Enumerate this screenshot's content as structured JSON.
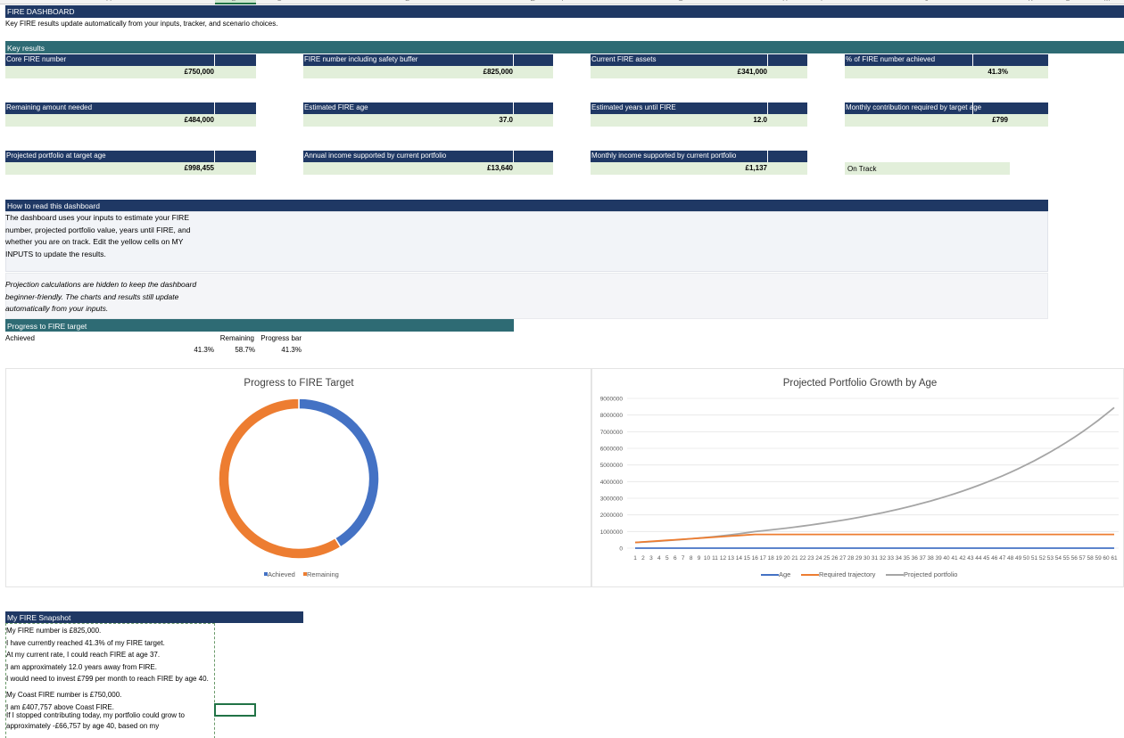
{
  "columns": [
    "A",
    "B",
    "C",
    "D",
    "E",
    "F",
    "G",
    "H",
    "I",
    "J",
    "K",
    "L",
    "M"
  ],
  "header": {
    "title": "FIRE DASHBOARD",
    "subtitle": "Key FIRE results update automatically from your inputs, tracker, and scenario choices."
  },
  "key_results": {
    "title": "Key results",
    "cards": [
      {
        "label": "Core FIRE number",
        "value": "£750,000"
      },
      {
        "label": "FIRE number including safety buffer",
        "value": "£825,000"
      },
      {
        "label": "Current FIRE assets",
        "value": "£341,000"
      },
      {
        "label": "% of FIRE number achieved",
        "value": "41.3%"
      },
      {
        "label": "Remaining amount needed",
        "value": "£484,000"
      },
      {
        "label": "Estimated FIRE age",
        "value": "37.0"
      },
      {
        "label": "Estimated years until FIRE",
        "value": "12.0"
      },
      {
        "label": "Monthly contribution required by target age",
        "value": "£799"
      },
      {
        "label": "Projected portfolio at target age",
        "value": "£998,455"
      },
      {
        "label": "Annual income supported by current portfolio",
        "value": "£13,640"
      },
      {
        "label": "Monthly income supported by current portfolio",
        "value": "£1,137"
      }
    ],
    "status": "On Track"
  },
  "how_to": {
    "title": "How to read this dashboard",
    "body": "The dashboard uses your inputs to estimate your FIRE number, projected portfolio value, years until FIRE, and whether you are on track. Edit the yellow cells on MY INPUTS to update the results.",
    "note": "Projection calculations are hidden to keep the dashboard beginner-friendly. The charts and results still update automatically from your inputs."
  },
  "progress": {
    "title": "Progress to FIRE target",
    "headers": [
      "Achieved",
      "Remaining",
      "Progress bar"
    ],
    "values": [
      "41.3%",
      "58.7%",
      "41.3%"
    ]
  },
  "chart_data": [
    {
      "type": "donut",
      "title": "Progress to FIRE Target",
      "categories": [
        "Achieved",
        "Remaining"
      ],
      "values": [
        41.3,
        58.7
      ],
      "colors": [
        "#4472c4",
        "#ed7d31"
      ],
      "legend": "bottom"
    },
    {
      "type": "line",
      "title": "Projected Portfolio Growth by Age",
      "categories": [
        1,
        2,
        3,
        4,
        5,
        6,
        7,
        8,
        9,
        10,
        11,
        12,
        13,
        14,
        15,
        16,
        17,
        18,
        19,
        20,
        21,
        22,
        23,
        24,
        25,
        26,
        27,
        28,
        29,
        30,
        31,
        32,
        33,
        34,
        35,
        36,
        37,
        38,
        39,
        40,
        41,
        42,
        43,
        44,
        45,
        46,
        47,
        48,
        49,
        50,
        51,
        52,
        53,
        54,
        55,
        56,
        57,
        58,
        59,
        60,
        61
      ],
      "ylim": [
        0,
        9000000
      ],
      "yticks": [
        0,
        1000000,
        2000000,
        3000000,
        4000000,
        5000000,
        6000000,
        7000000,
        8000000,
        9000000
      ],
      "grid": true,
      "legend": "bottom",
      "series": [
        {
          "name": "Age",
          "color": "#4472c4",
          "values": [
            25,
            26,
            27,
            28,
            29,
            30,
            31,
            32,
            33,
            34,
            35,
            36,
            37,
            38,
            39,
            40,
            41,
            42,
            43,
            44,
            45,
            46,
            47,
            48,
            49,
            50,
            51,
            52,
            53,
            54,
            55,
            56,
            57,
            58,
            59,
            60,
            61,
            62,
            63,
            64,
            65,
            66,
            67,
            68,
            69,
            70,
            71,
            72,
            73,
            74,
            75,
            76,
            77,
            78,
            79,
            80,
            81,
            82,
            83,
            84,
            85
          ]
        },
        {
          "name": "Required trajectory",
          "color": "#ed7d31",
          "values": [
            341000,
            373000,
            405500,
            437800,
            470100,
            502300,
            534600,
            566900,
            599100,
            631400,
            663700,
            695900,
            728200,
            760500,
            792700,
            825000,
            825000,
            825000,
            825000,
            825000,
            825000,
            825000,
            825000,
            825000,
            825000,
            825000,
            825000,
            825000,
            825000,
            825000,
            825000,
            825000,
            825000,
            825000,
            825000,
            825000,
            825000,
            825000,
            825000,
            825000,
            825000,
            825000,
            825000,
            825000,
            825000,
            825000,
            825000,
            825000,
            825000,
            825000,
            825000,
            825000,
            825000,
            825000,
            825000,
            825000,
            825000,
            825000,
            825000,
            825000,
            825000
          ]
        },
        {
          "name": "Projected portfolio",
          "color": "#a5a5a5",
          "values": [
            341000,
            366300,
            393500,
            422700,
            454000,
            487700,
            523900,
            562800,
            604600,
            649400,
            697600,
            749400,
            805000,
            864700,
            928900,
            998455,
            1047000,
            1098000,
            1151000,
            1207000,
            1266000,
            1327000,
            1392000,
            1460000,
            1530000,
            1605000,
            1683000,
            1765000,
            1850000,
            1940000,
            2035000,
            2133000,
            2237000,
            2346000,
            2460000,
            2579000,
            2705000,
            2836000,
            2974000,
            3119000,
            3270000,
            3429000,
            3596000,
            3770000,
            3954000,
            4146000,
            4347000,
            4559000,
            4780000,
            5012000,
            5256000,
            5512000,
            5779000,
            6060000,
            6355000,
            6664000,
            6987000,
            7327000,
            7683000,
            8057000,
            8448000
          ]
        }
      ]
    }
  ],
  "snapshot": {
    "title": "My FIRE Snapshot",
    "lines": [
      "My FIRE number is £825,000.",
      "I have currently reached 41.3% of my FIRE target.",
      "At my current rate, I could reach FIRE at age 37.",
      "I am approximately 12.0 years away from FIRE.",
      "I would need to invest £799 per month to reach FIRE by age 40.",
      "My Coast FIRE number is £750,000.",
      "I am £407,757 above Coast FIRE.",
      "If I stopped contributing today, my portfolio could grow to approximately -£66,757 by age 40, based on my"
    ]
  }
}
